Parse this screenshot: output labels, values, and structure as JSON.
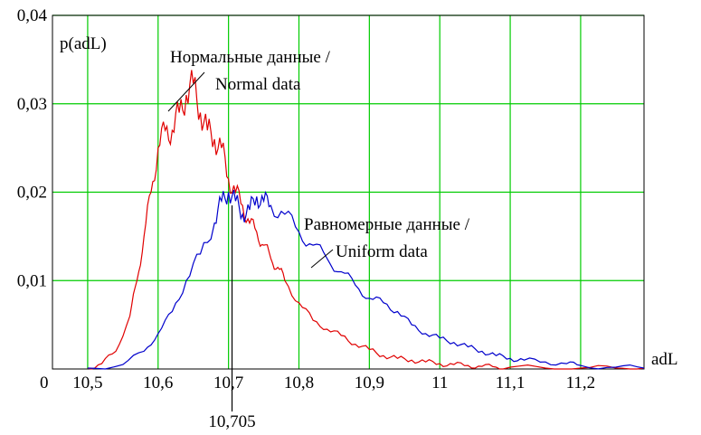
{
  "chart_data": {
    "type": "line",
    "title": "",
    "ylabel": "p(adL)",
    "xlabel": "adL",
    "xlim": [
      10.45,
      11.29
    ],
    "ylim": [
      0,
      0.04
    ],
    "grid": true,
    "x_ticks": [
      10.5,
      10.6,
      10.7,
      10.8,
      10.9,
      11.0,
      11.1,
      11.2
    ],
    "x_tick_labels": [
      "10,5",
      "10,6",
      "10,7",
      "10,8",
      "10,9",
      "11",
      "11,1",
      "11,2"
    ],
    "y_ticks": [
      0.01,
      0.02,
      0.03,
      0.04
    ],
    "y_tick_labels": [
      "0,01",
      "0,02",
      "0,03",
      "0,04"
    ],
    "origin_label": "0",
    "series": [
      {
        "color": "#e00000",
        "x": [
          10.5,
          10.52,
          10.54,
          10.56,
          10.57,
          10.58,
          10.59,
          10.6,
          10.61,
          10.62,
          10.63,
          10.64,
          10.65,
          10.66,
          10.67,
          10.68,
          10.69,
          10.7,
          10.71,
          10.72,
          10.73,
          10.74,
          10.75,
          10.76,
          10.77,
          10.78,
          10.8,
          10.82,
          10.84,
          10.86,
          10.88,
          10.9,
          10.92,
          10.94,
          10.96,
          10.98,
          11.0,
          11.02,
          11.04,
          11.06,
          11.08,
          11.1,
          11.15,
          11.2,
          11.25,
          11.29
        ],
        "y": [
          0.0001,
          0.0006,
          0.002,
          0.006,
          0.01,
          0.015,
          0.02,
          0.025,
          0.027,
          0.027,
          0.029,
          0.031,
          0.0323,
          0.029,
          0.027,
          0.026,
          0.025,
          0.0215,
          0.02,
          0.0185,
          0.0165,
          0.0155,
          0.014,
          0.0125,
          0.0115,
          0.01,
          0.0075,
          0.0055,
          0.0045,
          0.0038,
          0.0028,
          0.0022,
          0.0015,
          0.0012,
          0.001,
          0.0008,
          0.0006,
          0.0005,
          0.0004,
          0.0003,
          0.0002,
          0.0002,
          0.0001,
          0.0001,
          0.0001,
          0.0001
        ]
      },
      {
        "color": "#0000cc",
        "x": [
          10.5,
          10.55,
          10.58,
          10.6,
          10.62,
          10.64,
          10.66,
          10.68,
          10.69,
          10.7,
          10.71,
          10.72,
          10.73,
          10.74,
          10.75,
          10.76,
          10.78,
          10.8,
          10.82,
          10.84,
          10.86,
          10.88,
          10.9,
          10.92,
          10.94,
          10.96,
          10.98,
          11.0,
          11.02,
          11.04,
          11.06,
          11.08,
          11.1,
          11.12,
          11.15,
          11.18,
          11.2,
          11.25,
          11.29
        ],
        "y": [
          0.0001,
          0.0005,
          0.002,
          0.004,
          0.0065,
          0.01,
          0.013,
          0.0165,
          0.019,
          0.02,
          0.019,
          0.0175,
          0.018,
          0.0195,
          0.019,
          0.0185,
          0.0175,
          0.0155,
          0.014,
          0.0125,
          0.011,
          0.0095,
          0.008,
          0.0075,
          0.0065,
          0.005,
          0.004,
          0.0035,
          0.003,
          0.0025,
          0.002,
          0.0015,
          0.0012,
          0.001,
          0.0008,
          0.0006,
          0.0004,
          0.0002,
          0.0001
        ]
      }
    ],
    "marker": {
      "x": 10.705,
      "label": "10,705"
    },
    "annotations": [
      {
        "text": "Нормальные данные /",
        "target_series": 0
      },
      {
        "text": "Normal data",
        "target_series": 0
      },
      {
        "text": "Равномерные данные /",
        "target_series": 1
      },
      {
        "text": "Uniform data",
        "target_series": 1
      }
    ]
  }
}
